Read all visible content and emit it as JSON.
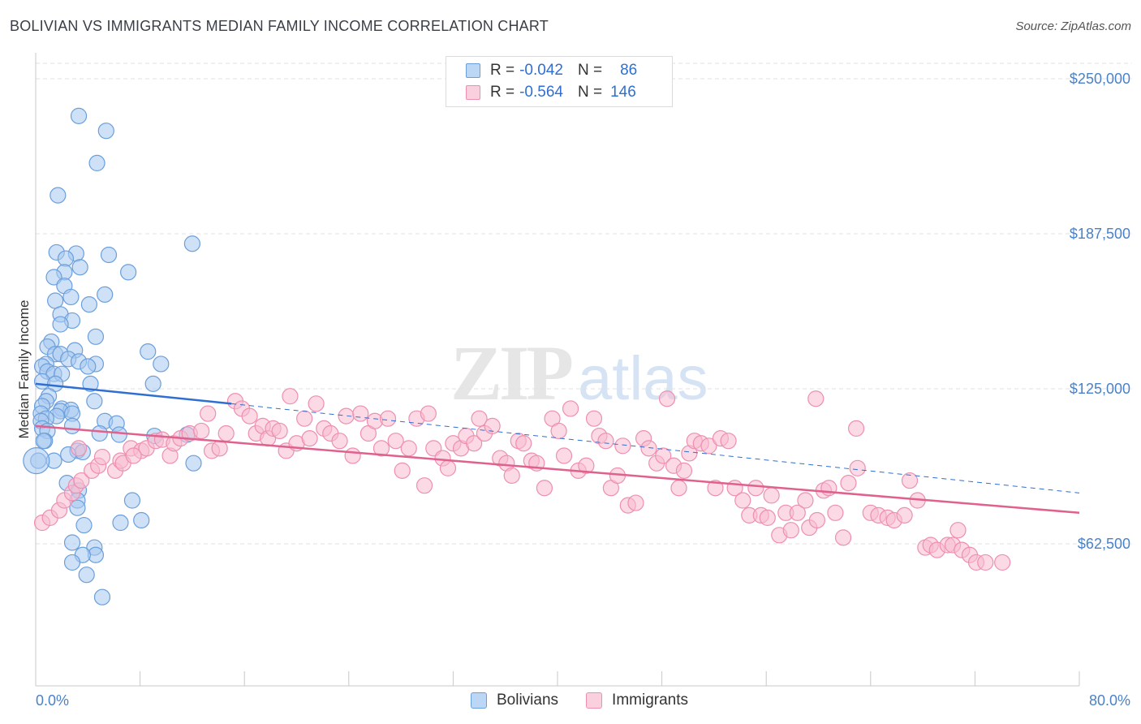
{
  "header": {
    "title": "BOLIVIAN VS IMMIGRANTS MEDIAN FAMILY INCOME CORRELATION CHART",
    "source": "Source: ZipAtlas.com"
  },
  "legend": {
    "rows": [
      {
        "r_label": "R =",
        "r_value": "-0.042",
        "n_label": "N =",
        "n_value": "86"
      },
      {
        "r_label": "R =",
        "r_value": "-0.564",
        "n_label": "N =",
        "n_value": "146"
      }
    ]
  },
  "bottom_legend": {
    "bolivians": "Bolivians",
    "immigrants": "Immigrants"
  },
  "colors": {
    "bolivians_fill": "#a8c8f0",
    "bolivians_stroke": "#6a9fdc",
    "bolivians_line": "#2f6fd1",
    "immigrants_fill": "#f7bcd0",
    "immigrants_stroke": "#ee8fb0",
    "immigrants_line": "#e0608e",
    "axis_label": "#4a82c8",
    "grid": "#e1e1e1"
  },
  "chart_data": {
    "type": "scatter",
    "title": "BOLIVIAN VS IMMIGRANTS MEDIAN FAMILY INCOME CORRELATION CHART",
    "xlabel": "",
    "ylabel": "Median Family Income",
    "xlim": [
      0,
      80
    ],
    "ylim": [
      0,
      265000
    ],
    "x_tick_labels": [
      "0.0%",
      "80.0%"
    ],
    "y_ticks": [
      62500,
      125000,
      187500,
      250000
    ],
    "y_tick_labels": [
      "$62,500",
      "$125,000",
      "$187,500",
      "$250,000"
    ],
    "grid": true,
    "legend_position": "top-center",
    "series": [
      {
        "name": "Bolivians",
        "R": -0.042,
        "N": 86,
        "trend": {
          "x": [
            0,
            15
          ],
          "y": [
            127000,
            119000
          ],
          "dashed_extension_to_x": 80,
          "y_at_80": 83000
        },
        "points": [
          [
            3.3,
            235000
          ],
          [
            5.4,
            229000
          ],
          [
            4.7,
            216000
          ],
          [
            1.7,
            203000
          ],
          [
            12,
            183500
          ],
          [
            1.6,
            180000
          ],
          [
            3.1,
            179500
          ],
          [
            5.6,
            179000
          ],
          [
            2.3,
            177500
          ],
          [
            3.4,
            174000
          ],
          [
            2.2,
            172000
          ],
          [
            1.4,
            170000
          ],
          [
            7.1,
            172000
          ],
          [
            2.2,
            166500
          ],
          [
            5.3,
            163000
          ],
          [
            2.7,
            162000
          ],
          [
            1.5,
            160500
          ],
          [
            4.1,
            159000
          ],
          [
            1.9,
            155000
          ],
          [
            2.8,
            152500
          ],
          [
            1.9,
            151000
          ],
          [
            4.6,
            146000
          ],
          [
            1.2,
            144000
          ],
          [
            0.9,
            142000
          ],
          [
            3.0,
            140500
          ],
          [
            8.6,
            140000
          ],
          [
            1.5,
            139000
          ],
          [
            1.9,
            139000
          ],
          [
            2.5,
            137000
          ],
          [
            3.3,
            136000
          ],
          [
            0.8,
            135000
          ],
          [
            4.6,
            135000
          ],
          [
            9.6,
            135000
          ],
          [
            0.5,
            134000
          ],
          [
            4.0,
            134000
          ],
          [
            0.9,
            132000
          ],
          [
            1.4,
            131000
          ],
          [
            2.0,
            131000
          ],
          [
            0.5,
            128000
          ],
          [
            1.5,
            127000
          ],
          [
            9.0,
            127000
          ],
          [
            4.2,
            127000
          ],
          [
            1.0,
            122000
          ],
          [
            4.5,
            120000
          ],
          [
            0.8,
            120000
          ],
          [
            0.5,
            118000
          ],
          [
            2.0,
            117000
          ],
          [
            2.7,
            116500
          ],
          [
            1.9,
            116000
          ],
          [
            2.8,
            115000
          ],
          [
            0.4,
            115000
          ],
          [
            1.6,
            114000
          ],
          [
            0.8,
            113000
          ],
          [
            0.4,
            112000
          ],
          [
            5.3,
            112000
          ],
          [
            6.2,
            111000
          ],
          [
            2.8,
            110000
          ],
          [
            0.5,
            109000
          ],
          [
            0.9,
            108000
          ],
          [
            4.9,
            107000
          ],
          [
            6.4,
            106500
          ],
          [
            11.6,
            106500
          ],
          [
            9.1,
            106000
          ],
          [
            0.7,
            104000
          ],
          [
            0.6,
            104000
          ],
          [
            3.2,
            100000
          ],
          [
            3.6,
            99500
          ],
          [
            2.5,
            98500
          ],
          [
            1.4,
            96000
          ],
          [
            0.2,
            96000
          ],
          [
            12.1,
            95000
          ],
          [
            2.4,
            87000
          ],
          [
            3.3,
            84000
          ],
          [
            7.4,
            80000
          ],
          [
            3.2,
            80000
          ],
          [
            3.2,
            77000
          ],
          [
            8.1,
            72000
          ],
          [
            6.5,
            71000
          ],
          [
            3.7,
            70000
          ],
          [
            2.8,
            63000
          ],
          [
            4.5,
            61000
          ],
          [
            4.6,
            58000
          ],
          [
            3.6,
            58000
          ],
          [
            2.8,
            55000
          ],
          [
            3.9,
            50000
          ],
          [
            5.1,
            41000
          ]
        ]
      },
      {
        "name": "Immigrants",
        "R": -0.564,
        "N": 146,
        "trend": {
          "x": [
            0,
            80
          ],
          "y": [
            110000,
            75000
          ]
        },
        "points": [
          [
            0.5,
            71000
          ],
          [
            1.1,
            73000
          ],
          [
            1.8,
            76000
          ],
          [
            2.2,
            80000
          ],
          [
            2.8,
            83000
          ],
          [
            3.1,
            86000
          ],
          [
            3.5,
            88000
          ],
          [
            4.3,
            92000
          ],
          [
            4.8,
            94000
          ],
          [
            5.1,
            97500
          ],
          [
            6.1,
            92000
          ],
          [
            6.5,
            96000
          ],
          [
            6.7,
            95000
          ],
          [
            7.3,
            101000
          ],
          [
            8.1,
            100000
          ],
          [
            8.5,
            101000
          ],
          [
            9.2,
            104000
          ],
          [
            9.7,
            104500
          ],
          [
            10.3,
            98000
          ],
          [
            10.6,
            103000
          ],
          [
            11.1,
            105000
          ],
          [
            11.8,
            107000
          ],
          [
            12.7,
            108000
          ],
          [
            13.2,
            115000
          ],
          [
            13.5,
            100000
          ],
          [
            14.1,
            101000
          ],
          [
            14.6,
            107000
          ],
          [
            15.3,
            120000
          ],
          [
            15.8,
            117000
          ],
          [
            16.4,
            114000
          ],
          [
            16.9,
            107000
          ],
          [
            17.4,
            110000
          ],
          [
            17.8,
            105000
          ],
          [
            18.2,
            109000
          ],
          [
            18.7,
            108000
          ],
          [
            19.2,
            100000
          ],
          [
            19.5,
            122000
          ],
          [
            20.0,
            103000
          ],
          [
            20.6,
            113000
          ],
          [
            21.0,
            105000
          ],
          [
            21.5,
            119000
          ],
          [
            22.1,
            109000
          ],
          [
            22.6,
            107000
          ],
          [
            23.3,
            104000
          ],
          [
            23.8,
            114000
          ],
          [
            24.3,
            98000
          ],
          [
            24.9,
            115000
          ],
          [
            25.5,
            107000
          ],
          [
            26.0,
            112000
          ],
          [
            26.5,
            101000
          ],
          [
            27.0,
            113000
          ],
          [
            27.6,
            104000
          ],
          [
            28.1,
            92000
          ],
          [
            28.6,
            101000
          ],
          [
            29.2,
            113000
          ],
          [
            29.8,
            86000
          ],
          [
            30.1,
            115000
          ],
          [
            30.5,
            101000
          ],
          [
            31.2,
            97000
          ],
          [
            31.6,
            93000
          ],
          [
            32.0,
            103000
          ],
          [
            32.6,
            101000
          ],
          [
            33.0,
            106000
          ],
          [
            33.6,
            103000
          ],
          [
            34.0,
            113000
          ],
          [
            34.4,
            107000
          ],
          [
            35.0,
            110000
          ],
          [
            35.6,
            97000
          ],
          [
            36.1,
            95000
          ],
          [
            36.5,
            90000
          ],
          [
            37.0,
            104000
          ],
          [
            37.4,
            103000
          ],
          [
            38.0,
            96000
          ],
          [
            38.4,
            95000
          ],
          [
            39.0,
            85000
          ],
          [
            39.6,
            113000
          ],
          [
            40.1,
            108000
          ],
          [
            40.5,
            98000
          ],
          [
            41.0,
            117000
          ],
          [
            41.6,
            92000
          ],
          [
            42.2,
            94000
          ],
          [
            42.8,
            113000
          ],
          [
            43.2,
            106000
          ],
          [
            43.7,
            104000
          ],
          [
            44.1,
            85000
          ],
          [
            44.6,
            90000
          ],
          [
            45.0,
            102000
          ],
          [
            45.4,
            78000
          ],
          [
            46.0,
            79000
          ],
          [
            46.6,
            105000
          ],
          [
            47.0,
            101000
          ],
          [
            47.6,
            95000
          ],
          [
            48.1,
            98000
          ],
          [
            48.4,
            121000
          ],
          [
            48.9,
            94000
          ],
          [
            49.3,
            85000
          ],
          [
            49.7,
            92000
          ],
          [
            50.1,
            99000
          ],
          [
            50.5,
            104000
          ],
          [
            51.0,
            103000
          ],
          [
            51.6,
            102000
          ],
          [
            52.1,
            85000
          ],
          [
            52.5,
            105000
          ],
          [
            53.1,
            104000
          ],
          [
            53.6,
            85000
          ],
          [
            54.2,
            80000
          ],
          [
            54.7,
            74000
          ],
          [
            55.2,
            85000
          ],
          [
            55.6,
            74000
          ],
          [
            56.1,
            73000
          ],
          [
            56.4,
            82000
          ],
          [
            57.0,
            66000
          ],
          [
            57.5,
            75000
          ],
          [
            57.9,
            68000
          ],
          [
            58.4,
            75000
          ],
          [
            59.0,
            80000
          ],
          [
            59.3,
            69000
          ],
          [
            59.9,
            72000
          ],
          [
            60.4,
            84000
          ],
          [
            60.8,
            85000
          ],
          [
            61.3,
            75000
          ],
          [
            61.9,
            65000
          ],
          [
            62.3,
            87000
          ],
          [
            62.9,
            109000
          ],
          [
            63.0,
            93000
          ],
          [
            64.0,
            75000
          ],
          [
            64.6,
            74000
          ],
          [
            65.3,
            73000
          ],
          [
            65.8,
            72000
          ],
          [
            66.6,
            74000
          ],
          [
            67.0,
            88000
          ],
          [
            67.6,
            80000
          ],
          [
            68.2,
            61000
          ],
          [
            68.6,
            62000
          ],
          [
            69.1,
            60000
          ],
          [
            69.9,
            62000
          ],
          [
            70.3,
            62000
          ],
          [
            70.7,
            68000
          ],
          [
            71.0,
            60000
          ],
          [
            71.6,
            58000
          ],
          [
            72.1,
            55000
          ],
          [
            72.8,
            55000
          ],
          [
            74.1,
            55000
          ],
          [
            59.8,
            121000
          ],
          [
            3.3,
            101000
          ],
          [
            7.5,
            98000
          ]
        ]
      }
    ]
  }
}
